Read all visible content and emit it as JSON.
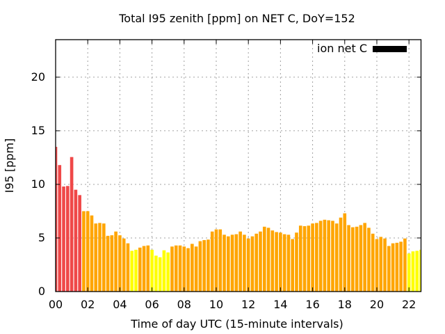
{
  "chart_data": {
    "type": "bar",
    "title": "Total I95 zenith [ppm] on NET C, DoY=152",
    "xlabel": "Time of day UTC (15-minute intervals)",
    "ylabel": "I95 [ppm]",
    "xlim": [
      0,
      22.75
    ],
    "ylim": [
      0,
      23.5
    ],
    "grid": true,
    "legend": {
      "position": "top-right",
      "entries": [
        {
          "label": "ion net C",
          "color": "#000000"
        }
      ]
    },
    "x_ticks": [
      {
        "value": 0,
        "label": "00"
      },
      {
        "value": 2,
        "label": "02"
      },
      {
        "value": 4,
        "label": "04"
      },
      {
        "value": 6,
        "label": "06"
      },
      {
        "value": 8,
        "label": "08"
      },
      {
        "value": 10,
        "label": "10"
      },
      {
        "value": 12,
        "label": "12"
      },
      {
        "value": 14,
        "label": "14"
      },
      {
        "value": 16,
        "label": "16"
      },
      {
        "value": 18,
        "label": "18"
      },
      {
        "value": 20,
        "label": "20"
      },
      {
        "value": 22,
        "label": "22"
      }
    ],
    "y_ticks": [
      {
        "value": 0,
        "label": "0"
      },
      {
        "value": 5,
        "label": "5"
      },
      {
        "value": 10,
        "label": "10"
      },
      {
        "value": 15,
        "label": "15"
      },
      {
        "value": 20,
        "label": "20"
      }
    ],
    "interval_hours": 0.25,
    "values": [
      13.5,
      11.8,
      9.8,
      9.85,
      12.55,
      9.5,
      9.0,
      7.5,
      7.5,
      7.1,
      6.35,
      6.4,
      6.35,
      5.2,
      5.25,
      5.6,
      5.25,
      4.95,
      4.5,
      3.8,
      3.9,
      4.1,
      4.25,
      4.3,
      3.9,
      3.35,
      3.2,
      3.85,
      3.65,
      4.2,
      4.3,
      4.3,
      4.2,
      4.05,
      4.45,
      4.2,
      4.7,
      4.8,
      4.85,
      5.6,
      5.8,
      5.8,
      5.3,
      5.15,
      5.3,
      5.35,
      5.6,
      5.3,
      4.95,
      5.15,
      5.4,
      5.6,
      6.05,
      5.95,
      5.7,
      5.55,
      5.5,
      5.35,
      5.3,
      4.9,
      5.5,
      6.15,
      6.1,
      6.15,
      6.35,
      6.4,
      6.6,
      6.7,
      6.65,
      6.6,
      6.35,
      6.9,
      7.3,
      6.2,
      6.0,
      6.05,
      6.2,
      6.4,
      5.95,
      5.4,
      4.9,
      5.1,
      4.95,
      4.25,
      4.5,
      4.55,
      4.65,
      4.95,
      3.55,
      3.75,
      3.8,
      3.9
    ],
    "color_classes": [
      {
        "min": 9,
        "color": "#ef4848"
      },
      {
        "min": 4,
        "color": "#ffa500"
      },
      {
        "min": 0,
        "color": "#ffff00"
      }
    ]
  }
}
